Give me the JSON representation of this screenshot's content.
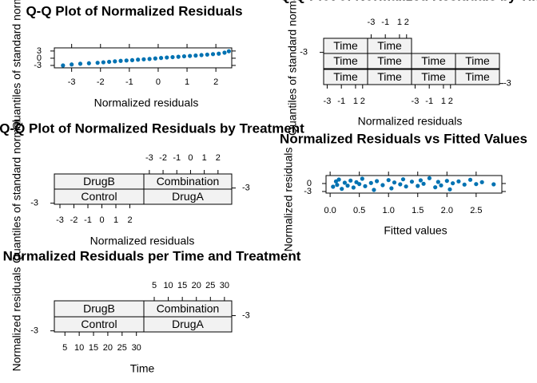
{
  "chart_data": [
    {
      "type": "scatter",
      "title": "Q-Q Plot of Normalized Residuals",
      "xlabel": "Normalized residuals",
      "ylabel": "Quantiles of standard normal",
      "color": "#0072b2",
      "x": [
        -3.3,
        -3.0,
        -2.7,
        -2.4,
        -2.1,
        -1.9,
        -1.7,
        -1.5,
        -1.3,
        -1.1,
        -0.9,
        -0.7,
        -0.5,
        -0.3,
        -0.1,
        0.1,
        0.3,
        0.5,
        0.7,
        0.9,
        1.1,
        1.3,
        1.5,
        1.7,
        1.9,
        2.1,
        2.3,
        2.45
      ],
      "values": [
        -3.0,
        -2.6,
        -2.3,
        -2.1,
        -1.9,
        -1.7,
        -1.5,
        -1.3,
        -1.1,
        -0.95,
        -0.8,
        -0.6,
        -0.45,
        -0.3,
        -0.1,
        0.1,
        0.3,
        0.45,
        0.6,
        0.8,
        0.95,
        1.1,
        1.3,
        1.5,
        1.7,
        1.9,
        2.3,
        2.9
      ],
      "xlim": [
        -3.6,
        2.55
      ],
      "ylim": [
        -4,
        4.3
      ],
      "xticks": [
        -3,
        -2,
        -1,
        0,
        1,
        2
      ],
      "yticks": [
        -3,
        0,
        3
      ]
    },
    {
      "type": "trellis",
      "title": "Q-Q Plot of Normalized Residuals by Time",
      "xlabel": "Normalized residuals",
      "ylabel": "Quantiles of standard normal",
      "strips": [
        "Time",
        "Time",
        "Time",
        "Time",
        "Time",
        "Time",
        "Time",
        "Time",
        "Time",
        "Time"
      ],
      "xlim": [
        -3.5,
        2.7
      ],
      "xticks": [
        -3,
        -1,
        1,
        2
      ],
      "ylim": [
        -3.5,
        3.5
      ],
      "yticks": [
        -3
      ]
    },
    {
      "type": "trellis",
      "title": "Q-Q Plot of Normalized Residuals by Treatment",
      "xlabel": "Normalized residuals",
      "ylabel": "Quantiles of standard normal",
      "strips": [
        "DrugB",
        "Combination",
        "Control",
        "DrugA"
      ],
      "xlim": [
        -3.4,
        3
      ],
      "xticks": [
        -3,
        -2,
        -1,
        0,
        1,
        2
      ],
      "ylim": [
        -3.5,
        3.5
      ],
      "yticks": [
        -3
      ]
    },
    {
      "type": "scatter",
      "title": "Normalized Residuals vs Fitted Values",
      "xlabel": "Fitted values",
      "ylabel": "Normalized residuals",
      "color": "#0072b2",
      "x": [
        0.05,
        0.1,
        0.12,
        0.15,
        0.2,
        0.25,
        0.3,
        0.35,
        0.4,
        0.45,
        0.5,
        0.55,
        0.6,
        0.7,
        0.75,
        0.8,
        0.9,
        1.0,
        1.05,
        1.1,
        1.2,
        1.25,
        1.3,
        1.4,
        1.5,
        1.55,
        1.6,
        1.7,
        1.8,
        1.85,
        1.9,
        2.0,
        2.05,
        2.1,
        2.2,
        2.3,
        2.4,
        2.5,
        2.6,
        2.8
      ],
      "values": [
        -1.2,
        0.8,
        -0.5,
        1.5,
        -2.0,
        0.3,
        -0.8,
        1.1,
        -1.5,
        0.5,
        -0.2,
        1.8,
        -1.0,
        0.2,
        -2.4,
        0.9,
        -0.6,
        1.3,
        -1.8,
        0.4,
        -0.3,
        1.6,
        -1.1,
        0.7,
        -0.9,
        1.2,
        -0.1,
        2.0,
        -1.4,
        0.6,
        -0.7,
        1.0,
        -2.2,
        0.1,
        0.8,
        -0.4,
        1.4,
        -0.2,
        0.5,
        -0.3
      ],
      "xlim": [
        -0.07,
        2.94
      ],
      "ylim": [
        -3.6,
        3
      ],
      "xticks": [
        {
          "value": 0,
          "label": "0.0"
        },
        {
          "value": 0.5,
          "label": "0.5"
        },
        {
          "value": 1,
          "label": "1.0"
        },
        {
          "value": 1.5,
          "label": "1.5"
        },
        {
          "value": 2,
          "label": "2.0"
        },
        {
          "value": 2.5,
          "label": "2.5"
        }
      ],
      "yticks": [
        -3,
        0
      ]
    },
    {
      "type": "trellis",
      "title": "Normalized Residuals per Time and Treatment",
      "xlabel": "Time",
      "ylabel": "Normalized residuals",
      "strips": [
        "DrugB",
        "Combination",
        "Control",
        "DrugA"
      ],
      "xlim": [
        1.3,
        32.6
      ],
      "xticks": [
        5,
        10,
        15,
        20,
        25,
        30
      ],
      "ylim": [
        -3.5,
        3.5
      ],
      "yticks": [
        -3
      ]
    }
  ]
}
